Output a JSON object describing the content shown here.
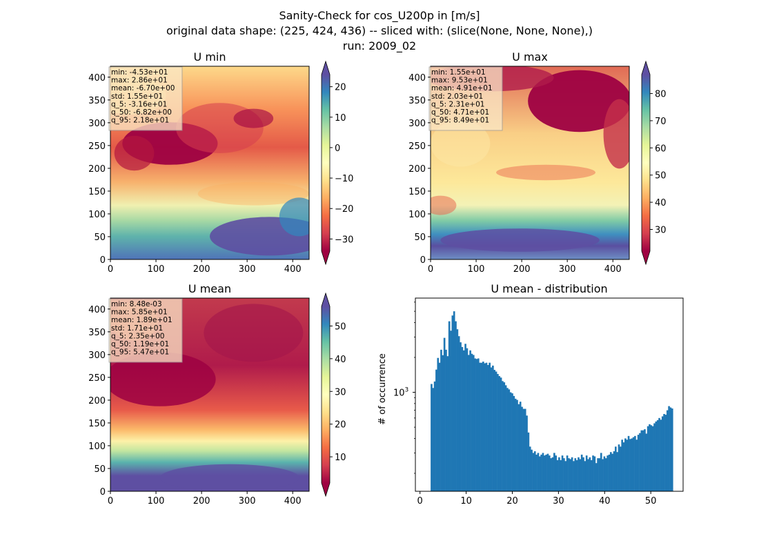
{
  "header": {
    "title_line1": "Sanity-Check for cos_U200p in [m/s]",
    "title_line2": "original data shape: (225, 424, 436) -- sliced with: (slice(None, None, None),)",
    "title_line3": "run: 2009_02"
  },
  "colors": {
    "cmap": [
      "#9e0142",
      "#d53e4f",
      "#f46d43",
      "#fdae61",
      "#fee08b",
      "#ffffbf",
      "#e6f598",
      "#abdda4",
      "#66c2a5",
      "#3288bd",
      "#5e4fa2"
    ],
    "hist_bar": "#1f77b4"
  },
  "chart_data": [
    {
      "type": "heatmap",
      "title": "U min",
      "xlim": [
        0,
        436
      ],
      "ylim": [
        0,
        424
      ],
      "xticks": [
        0,
        100,
        200,
        300,
        400
      ],
      "yticks": [
        0,
        50,
        100,
        150,
        200,
        250,
        300,
        350,
        400
      ],
      "colorbar": {
        "range": [
          -34,
          24
        ],
        "ticks": [
          20,
          10,
          0,
          -10,
          -20,
          -30
        ],
        "tick_labels": [
          "20",
          "10",
          "0",
          "−10",
          "−20",
          "−30"
        ],
        "extend": "both"
      },
      "stats": [
        "min: -4.53e+01",
        "max: 2.86e+01",
        "mean: -6.70e+00",
        "std: 1.55e+01",
        "q_5: -3.16e+01",
        "q_50: -6.82e+00",
        "q_95: 2.18e+01"
      ]
    },
    {
      "type": "heatmap",
      "title": "U max",
      "xlim": [
        0,
        436
      ],
      "ylim": [
        0,
        424
      ],
      "xticks": [
        0,
        100,
        200,
        300,
        400
      ],
      "yticks": [
        0,
        50,
        100,
        150,
        200,
        250,
        300,
        350,
        400
      ],
      "colorbar": {
        "range": [
          22,
          87
        ],
        "ticks": [
          80,
          70,
          60,
          50,
          40,
          30
        ],
        "tick_labels": [
          "80",
          "70",
          "60",
          "50",
          "40",
          "30"
        ],
        "extend": "both"
      },
      "stats": [
        "min: 1.55e+01",
        "max: 9.53e+01",
        "mean: 4.91e+01",
        "std: 2.03e+01",
        "q_5: 2.31e+01",
        "q_50: 4.71e+01",
        "q_95: 8.49e+01"
      ]
    },
    {
      "type": "heatmap",
      "title": "U mean",
      "xlim": [
        0,
        436
      ],
      "ylim": [
        0,
        424
      ],
      "xticks": [
        0,
        100,
        200,
        300,
        400
      ],
      "yticks": [
        0,
        50,
        100,
        150,
        200,
        250,
        300,
        350,
        400
      ],
      "colorbar": {
        "range": [
          2,
          56
        ],
        "ticks": [
          50,
          40,
          30,
          20,
          10
        ],
        "tick_labels": [
          "50",
          "40",
          "30",
          "20",
          "10"
        ],
        "extend": "both"
      },
      "stats": [
        "min: 8.48e-03",
        "max: 5.85e+01",
        "mean: 1.89e+01",
        "std: 1.71e+01",
        "q_5: 2.35e+00",
        "q_50: 1.19e+01",
        "q_95: 5.47e+01"
      ]
    },
    {
      "type": "bar",
      "title": "U mean - distribution",
      "ylabel": "# of occurrence",
      "xlabel": "",
      "yscale": "log",
      "xlim": [
        -1,
        57
      ],
      "ylim": [
        140,
        6500
      ],
      "xticks": [
        0,
        10,
        20,
        30,
        40,
        50
      ],
      "ytick_labels": [
        {
          "value": 1000,
          "base": "10",
          "exp": "3"
        }
      ],
      "bin_width": 0.35,
      "x": [
        2.3,
        2.65,
        3.0,
        3.35,
        3.7,
        4.05,
        4.4,
        4.75,
        5.1,
        5.45,
        5.8,
        6.15,
        6.5,
        6.85,
        7.2,
        7.55,
        7.9,
        8.25,
        8.6,
        8.95,
        9.3,
        9.65,
        10.0,
        10.35,
        10.7,
        11.05,
        11.4,
        11.75,
        12.1,
        12.45,
        12.8,
        13.15,
        13.5,
        13.85,
        14.2,
        14.55,
        14.9,
        15.25,
        15.6,
        15.95,
        16.3,
        16.65,
        17.0,
        17.35,
        17.7,
        18.05,
        18.4,
        18.75,
        19.1,
        19.45,
        19.8,
        20.15,
        20.5,
        20.85,
        21.2,
        21.55,
        21.9,
        22.25,
        22.6,
        22.95,
        23.3,
        23.65,
        24.0,
        24.35,
        24.7,
        25.05,
        25.4,
        25.75,
        26.1,
        26.45,
        26.8,
        27.15,
        27.5,
        27.85,
        28.2,
        28.55,
        28.9,
        29.25,
        29.6,
        29.95,
        30.3,
        30.65,
        31.0,
        31.35,
        31.7,
        32.05,
        32.4,
        32.75,
        33.1,
        33.45,
        33.8,
        34.15,
        34.5,
        34.85,
        35.2,
        35.55,
        35.9,
        36.25,
        36.6,
        36.95,
        37.3,
        37.65,
        38.0,
        38.35,
        38.7,
        39.05,
        39.4,
        39.75,
        40.1,
        40.45,
        40.8,
        41.15,
        41.5,
        41.85,
        42.2,
        42.55,
        42.9,
        43.25,
        43.6,
        43.95,
        44.3,
        44.65,
        45.0,
        45.35,
        45.7,
        46.05,
        46.4,
        46.75,
        47.1,
        47.45,
        47.8,
        48.15,
        48.5,
        48.85,
        49.2,
        49.55,
        49.9,
        50.25,
        50.6,
        50.95,
        51.3,
        51.65,
        52.0,
        52.35,
        52.7,
        53.05,
        53.4,
        53.75,
        54.1,
        54.45
      ],
      "values": [
        1180,
        1090,
        1240,
        1570,
        1980,
        1800,
        2330,
        2090,
        2950,
        2330,
        2050,
        4100,
        3400,
        4600,
        5000,
        4100,
        3500,
        3050,
        2700,
        2460,
        2300,
        2620,
        2400,
        2100,
        2300,
        2150,
        2100,
        1960,
        1940,
        1960,
        1800,
        1800,
        1840,
        1780,
        1800,
        1720,
        1800,
        1640,
        1700,
        1560,
        1510,
        1440,
        1380,
        1340,
        1250,
        1220,
        1150,
        1090,
        1060,
        1000,
        980,
        930,
        880,
        860,
        790,
        830,
        750,
        720,
        720,
        630,
        450,
        340,
        320,
        300,
        310,
        290,
        300,
        280,
        290,
        300,
        285,
        290,
        295,
        285,
        270,
        275,
        300,
        285,
        260,
        275,
        260,
        285,
        270,
        255,
        285,
        270,
        265,
        275,
        255,
        270,
        260,
        275,
        265,
        290,
        275,
        255,
        285,
        265,
        275,
        260,
        285,
        280,
        245,
        270,
        270,
        300,
        265,
        280,
        270,
        285,
        290,
        305,
        295,
        310,
        340,
        305,
        355,
        340,
        390,
        370,
        400,
        390,
        420,
        395,
        400,
        410,
        420,
        390,
        430,
        445,
        470,
        470,
        480,
        440,
        510,
        530,
        520,
        510,
        540,
        560,
        575,
        600,
        580,
        620,
        650,
        640,
        700,
        760,
        740,
        725
      ]
    }
  ]
}
